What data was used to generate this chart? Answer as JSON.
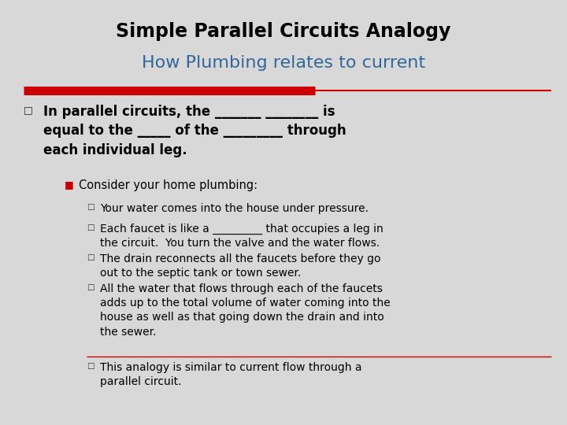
{
  "title1": "Simple Parallel Circuits Analogy",
  "title2": "How Plumbing relates to current",
  "bg_color": "#d8d8d8",
  "title1_color": "#000000",
  "title2_color": "#336699",
  "red_bar_color": "#cc0000",
  "bullet1_text": "In parallel circuits, the _______ ________ is\nequal to the _____ of the _________ through\neach individual leg.",
  "sub_bullet_header": "Consider your home plumbing:",
  "sub_bullets": [
    "Your water comes into the house under pressure.",
    "Each faucet is like a _________ that occupies a leg in\nthe circuit.  You turn the valve and the water flows.",
    "The drain reconnects all the faucets before they go\nout to the septic tank or town sewer.",
    "All the water that flows through each of the faucets\nadds up to the total volume of water coming into the\nhouse as well as that going down the drain and into\nthe sewer.",
    "This analogy is similar to current flow through a\nparallel circuit."
  ],
  "font_family": "DejaVu Sans",
  "title1_fontsize": 17,
  "title2_fontsize": 16,
  "body_fontsize": 10,
  "sub_header_fontsize": 10.5
}
